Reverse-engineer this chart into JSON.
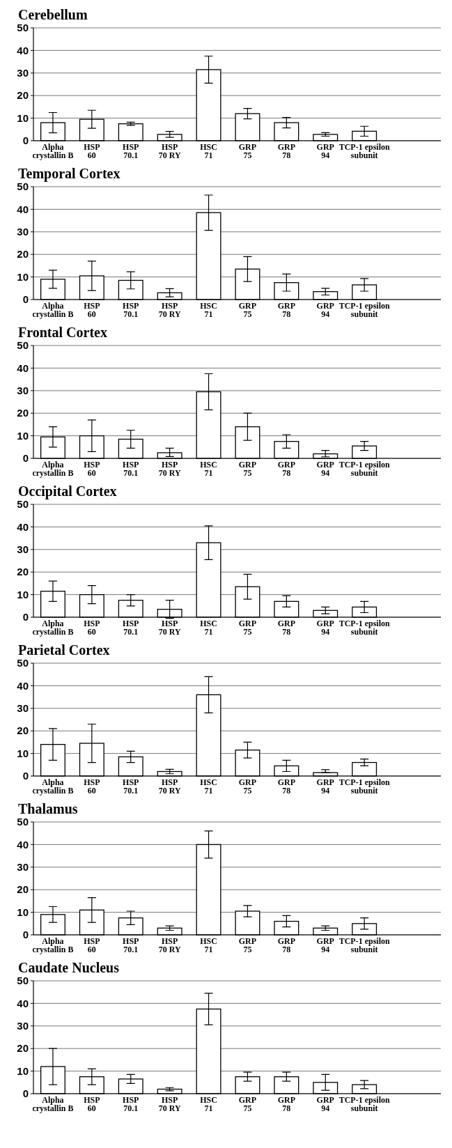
{
  "chart_data": [
    {
      "type": "bar",
      "title": "Cerebellum",
      "categories": [
        "Alpha\ncrystallin B",
        "HSP\n60",
        "HSP\n70.1",
        "HSP\n70 RY",
        "HSC\n71",
        "GRP\n75",
        "GRP\n78",
        "GRP\n94",
        "TCP-1 epsilon\nsubunit"
      ],
      "values": [
        8,
        9.5,
        7.5,
        2.8,
        31.5,
        12,
        8,
        2.8,
        4.2
      ],
      "errors": [
        4.5,
        4,
        0.7,
        1.3,
        6,
        2.3,
        2.3,
        0.8,
        2.2
      ],
      "color": "#ffffff",
      "ylim": [
        0,
        50
      ],
      "yticks": [
        0,
        10,
        20,
        30,
        40,
        50
      ],
      "grid": "y"
    },
    {
      "type": "bar",
      "title": "Temporal Cortex",
      "categories": [
        "Alpha\ncrystallin B",
        "HSP\n60",
        "HSP\n70.1",
        "HSP\n70 RY",
        "HSC\n71",
        "GRP\n75",
        "GRP\n78",
        "GRP\n94",
        "TCP-1 epsilon\nsubunit"
      ],
      "values": [
        9,
        10.5,
        8.5,
        3,
        38.5,
        13.5,
        7.5,
        3.5,
        6.5
      ],
      "errors": [
        4,
        6.5,
        3.8,
        1.8,
        7.8,
        5.5,
        3.8,
        1.5,
        2.8
      ],
      "color": "#ffffff",
      "ylim": [
        0,
        50
      ],
      "yticks": [
        0,
        10,
        20,
        30,
        40,
        50
      ],
      "grid": "y"
    },
    {
      "type": "bar",
      "title": "Frontal Cortex",
      "categories": [
        "Alpha\ncrystallin B",
        "HSP\n60",
        "HSP\n70.1",
        "HSP\n70 RY",
        "HSC\n71",
        "GRP\n75",
        "GRP\n78",
        "GRP\n94",
        "TCP-1 epsilon\nsubunit"
      ],
      "values": [
        9.5,
        10,
        8.5,
        2.5,
        29.5,
        14,
        7.5,
        2,
        5.5
      ],
      "errors": [
        4.5,
        7,
        4,
        [
          0.8,
          4.5
        ],
        8,
        6,
        3,
        [
          0.7,
          3.5
        ],
        2
      ],
      "color": "#ffffff",
      "ylim": [
        0,
        50
      ],
      "yticks": [
        0,
        10,
        20,
        30,
        40,
        50
      ],
      "grid": "y"
    },
    {
      "type": "bar",
      "title": "Occipital Cortex",
      "categories": [
        "Alpha\ncrystallin B",
        "HSP\n60",
        "HSP\n70.1",
        "HSP\n70 RY",
        "HSC\n71",
        "GRP\n75",
        "GRP\n78",
        "GRP\n94",
        "TCP-1 epsilon\nsubunit"
      ],
      "values": [
        11.5,
        10,
        7.5,
        3.5,
        33,
        13.5,
        7,
        3,
        4.5
      ],
      "errors": [
        4.5,
        4,
        2.5,
        4,
        7.5,
        5.5,
        2.5,
        1.5,
        2.5
      ],
      "color": "#ffffff",
      "ylim": [
        0,
        50
      ],
      "yticks": [
        0,
        10,
        20,
        30,
        40,
        50
      ],
      "grid": "y"
    },
    {
      "type": "bar",
      "title": "Parietal Cortex",
      "categories": [
        "Alpha\ncrystallin B",
        "HSP\n60",
        "HSP\n70.1",
        "HSP\n70 RY",
        "HSC\n71",
        "GRP\n75",
        "GRP\n78",
        "GRP\n94",
        "TCP-1 epsilon\nsubunit"
      ],
      "values": [
        14,
        14.5,
        8.5,
        2,
        36,
        11.5,
        4.5,
        1.5,
        6
      ],
      "errors": [
        7,
        8.5,
        2.5,
        1,
        8,
        3.5,
        2.5,
        [
          1.5,
          2.8
        ],
        1.5
      ],
      "color": "#ffffff",
      "ylim": [
        0,
        50
      ],
      "yticks": [
        0,
        10,
        20,
        30,
        40,
        50
      ],
      "grid": "y"
    },
    {
      "type": "bar",
      "title": "Thalamus",
      "categories": [
        "Alpha\ncrystallin B",
        "HSP\n60",
        "HSP\n70.1",
        "HSP\n70 RY",
        "HSC\n71",
        "GRP\n75",
        "GRP\n78",
        "GRP\n94",
        "TCP-1 epsilon\nsubunit"
      ],
      "values": [
        9,
        11,
        7.5,
        3,
        40,
        10.5,
        6,
        3,
        5
      ],
      "errors": [
        3.5,
        5.5,
        3,
        1,
        6,
        2.5,
        2.5,
        1,
        2.5
      ],
      "color": "#ffffff",
      "ylim": [
        0,
        50
      ],
      "yticks": [
        0,
        10,
        20,
        30,
        40,
        50
      ],
      "grid": "y"
    },
    {
      "type": "bar",
      "title": "Caudate Nucleus",
      "categories": [
        "Alpha\ncrystallin B",
        "HSP\n60",
        "HSP\n70.1",
        "HSP\n70 RY",
        "HSC\n71",
        "GRP\n75",
        "GRP\n78",
        "GRP\n94",
        "TCP-1 epsilon\nsubunit"
      ],
      "values": [
        12,
        7.5,
        6.5,
        2,
        37.5,
        7.5,
        7.5,
        5,
        4
      ],
      "errors": [
        8,
        3.5,
        2,
        0.7,
        7,
        2,
        2,
        3.5,
        1.8
      ],
      "color": "#ffffff",
      "ylim": [
        0,
        50
      ],
      "yticks": [
        0,
        10,
        20,
        30,
        40,
        50
      ],
      "grid": "y"
    }
  ]
}
